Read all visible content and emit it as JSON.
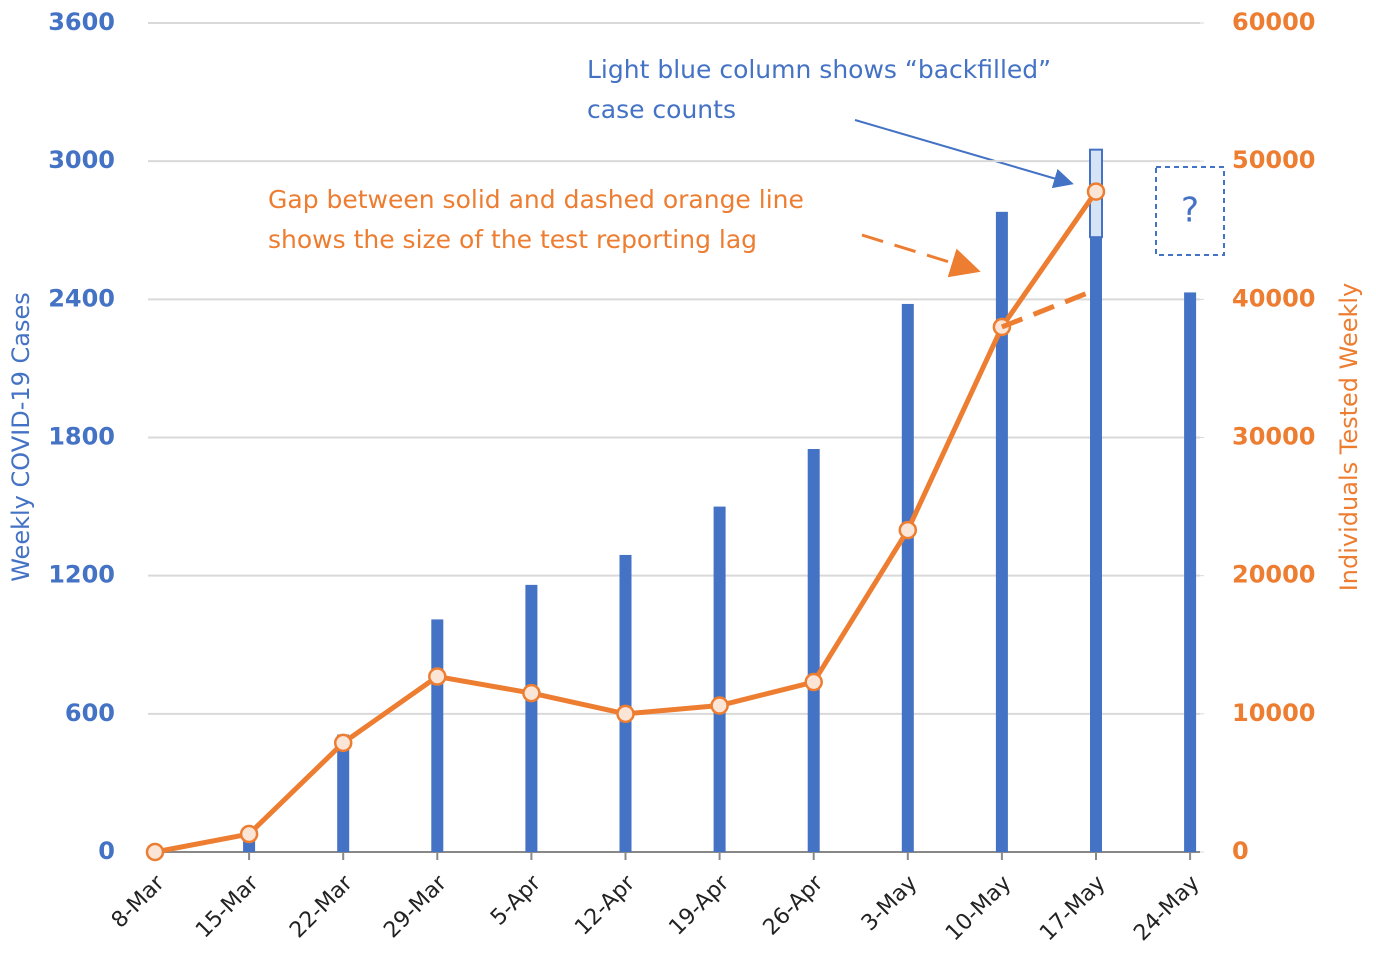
{
  "chart_data": {
    "type": "bar",
    "categories": [
      "8-Mar",
      "15-Mar",
      "22-Mar",
      "29-Mar",
      "5-Apr",
      "12-Apr",
      "19-Apr",
      "26-Apr",
      "3-May",
      "10-May",
      "17-May",
      "24-May"
    ],
    "series": [
      {
        "type": "bar",
        "color": "#4472c4",
        "values": [
          0,
          60,
          510,
          1010,
          1160,
          1290,
          1500,
          1750,
          2380,
          2780,
          2670,
          2430
        ]
      },
      {
        "type": "bar",
        "stacked": true,
        "color": "#d6e4f5",
        "values": [
          null,
          null,
          null,
          null,
          null,
          null,
          null,
          null,
          null,
          null,
          380,
          null
        ]
      },
      {
        "type": "line",
        "axis": "y2",
        "color": "#ed7d31",
        "markers": true,
        "values": [
          0,
          1300,
          7900,
          12700,
          11500,
          10000,
          10600,
          12300,
          23300,
          38000,
          47800,
          null
        ]
      },
      {
        "type": "line",
        "axis": "y2",
        "color": "#ed7d31",
        "dashed": true,
        "values": [
          null,
          null,
          null,
          null,
          null,
          null,
          null,
          null,
          null,
          38000,
          40700,
          null
        ]
      }
    ],
    "ylabel": "Weekly COVID-19 Cases",
    "y2label": "Individuals Tested Weekly",
    "ylim": [
      0,
      3600
    ],
    "yticks": [
      0,
      600,
      1200,
      1800,
      2400,
      3000,
      3600
    ],
    "y2lim": [
      0,
      60000
    ],
    "y2ticks": [
      0,
      10000,
      20000,
      30000,
      40000,
      50000,
      60000
    ],
    "grid": true,
    "annotations": [
      "Light blue column shows “backfilled”",
      "case counts",
      "Gap between solid and dashed orange line",
      "shows the size of the test reporting lag",
      "?"
    ]
  }
}
